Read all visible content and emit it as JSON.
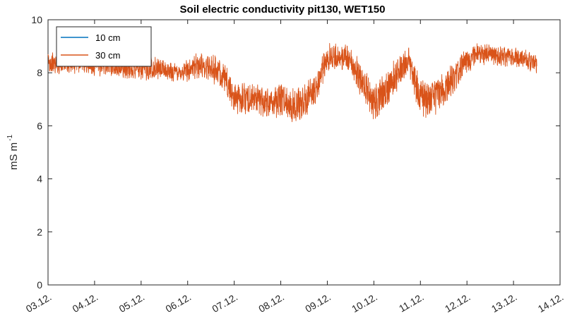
{
  "chart_data": {
    "type": "line",
    "title": "Soil electric conductivity pit130, WET150",
    "ylabel_main": "mS m",
    "ylabel_sup": "-1",
    "xlabel": "",
    "ylim": [
      0,
      10
    ],
    "yticks": [
      0,
      2,
      4,
      6,
      8,
      10
    ],
    "xlim": [
      0,
      11
    ],
    "xticks": [
      {
        "value": 0,
        "label": "03.12."
      },
      {
        "value": 1,
        "label": "04.12."
      },
      {
        "value": 2,
        "label": "05.12."
      },
      {
        "value": 3,
        "label": "06.12."
      },
      {
        "value": 4,
        "label": "07.12."
      },
      {
        "value": 5,
        "label": "08.12."
      },
      {
        "value": 6,
        "label": "09.12."
      },
      {
        "value": 7,
        "label": "10.12."
      },
      {
        "value": 8,
        "label": "11.12."
      },
      {
        "value": 9,
        "label": "12.12."
      },
      {
        "value": 10,
        "label": "13.12."
      },
      {
        "value": 11,
        "label": "14.12."
      }
    ],
    "legend_position": "top-left",
    "series": [
      {
        "name": "10 cm",
        "color": "#0072BD",
        "x": [],
        "y": []
      },
      {
        "name": "30 cm",
        "color": "#D95319",
        "x": [
          0,
          0.25,
          0.5,
          0.75,
          1.0,
          1.25,
          1.5,
          1.75,
          2.0,
          2.25,
          2.5,
          2.75,
          3.0,
          3.25,
          3.5,
          3.75,
          4.0,
          4.25,
          4.5,
          4.75,
          5.0,
          5.25,
          5.5,
          5.75,
          6.0,
          6.25,
          6.5,
          6.75,
          7.0,
          7.25,
          7.5,
          7.75,
          8.0,
          8.25,
          8.5,
          8.75,
          9.0,
          9.25,
          9.5,
          9.75,
          10.0,
          10.25,
          10.5
        ],
        "y": [
          8.4,
          8.3,
          8.3,
          8.4,
          8.2,
          8.3,
          8.2,
          8.2,
          8.1,
          8.2,
          8.1,
          8.0,
          8.1,
          8.3,
          8.2,
          7.9,
          7.1,
          7.0,
          7.0,
          6.9,
          7.0,
          6.8,
          6.9,
          7.4,
          8.6,
          8.6,
          8.5,
          7.6,
          6.9,
          7.3,
          8.0,
          8.5,
          7.0,
          7.0,
          7.4,
          7.9,
          8.5,
          8.7,
          8.7,
          8.6,
          8.6,
          8.5,
          8.3
        ],
        "noise_amplitude": [
          0.35,
          0.3,
          0.3,
          0.3,
          0.3,
          0.3,
          0.3,
          0.35,
          0.35,
          0.35,
          0.3,
          0.3,
          0.35,
          0.4,
          0.45,
          0.45,
          0.5,
          0.5,
          0.5,
          0.5,
          0.55,
          0.55,
          0.55,
          0.5,
          0.45,
          0.4,
          0.45,
          0.55,
          0.6,
          0.6,
          0.55,
          0.5,
          0.6,
          0.6,
          0.55,
          0.5,
          0.4,
          0.35,
          0.3,
          0.3,
          0.3,
          0.3,
          0.3
        ]
      }
    ]
  }
}
